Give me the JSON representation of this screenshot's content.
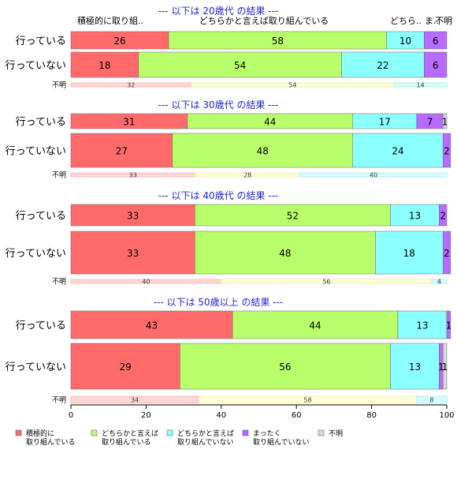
{
  "chart_data": {
    "type": "bar",
    "orientation": "horizontal",
    "stacked": true,
    "xlim": [
      0,
      100
    ],
    "x_ticks": [
      0,
      20,
      40,
      60,
      80,
      100
    ],
    "colors": {
      "active": "#FF6B6B",
      "somewhat_active": "#B8FF6B",
      "somewhat_inactive": "#8CFFFF",
      "inactive": "#B86BFF",
      "unknown": "#D9D9D9"
    },
    "categories": [
      "行っている",
      "行っていない"
    ],
    "top_labels": [
      "積極的に取り組..",
      "どちらかと言えば取り組んでいる",
      "どちら..",
      "ま..",
      "不明"
    ],
    "legend": [
      {
        "key": "active",
        "lines": [
          "積極的に",
          "取り組んでいる"
        ]
      },
      {
        "key": "somewhat_active",
        "lines": [
          "どちらかと言えば",
          "取り組んでいる"
        ]
      },
      {
        "key": "somewhat_inactive",
        "lines": [
          "どちらかと言えば",
          "取り組んでいない"
        ]
      },
      {
        "key": "inactive",
        "lines": [
          "まったく",
          "取り組んでいない"
        ]
      },
      {
        "key": "unknown",
        "lines": [
          "不明"
        ]
      }
    ],
    "unknown_row_label": "不明",
    "panels": [
      {
        "title": "--- 以下は 20歳代 の結果 ---",
        "rows": [
          {
            "category": "行っている",
            "values": [
              26,
              58,
              10,
              6,
              0
            ]
          },
          {
            "category": "行っていない",
            "values": [
              18,
              54,
              22,
              6,
              0
            ]
          }
        ],
        "unknown_row": [
          32,
          54,
          14
        ]
      },
      {
        "title": "--- 以下は 30歳代 の結果 ---",
        "rows": [
          {
            "category": "行っている",
            "values": [
              31,
              44,
              17,
              7,
              1
            ]
          },
          {
            "category": "行っていない",
            "values": [
              27,
              48,
              24,
              2,
              0
            ]
          }
        ],
        "unknown_row": [
          33,
          28,
          40
        ]
      },
      {
        "title": "--- 以下は 40歳代 の結果 ---",
        "rows": [
          {
            "category": "行っている",
            "values": [
              33,
              52,
              13,
              2,
              0
            ]
          },
          {
            "category": "行っていない",
            "values": [
              33,
              48,
              18,
              2,
              0
            ]
          }
        ],
        "unknown_row": [
          40,
          56,
          4
        ]
      },
      {
        "title": "--- 以下は 50歳以上 の結果 ---",
        "rows": [
          {
            "category": "行っている",
            "values": [
              43,
              44,
              13,
              1,
              0
            ]
          },
          {
            "category": "行っていない",
            "values": [
              29,
              56,
              13,
              1,
              1
            ]
          }
        ],
        "unknown_row": [
          34,
          58,
          8
        ]
      }
    ]
  }
}
